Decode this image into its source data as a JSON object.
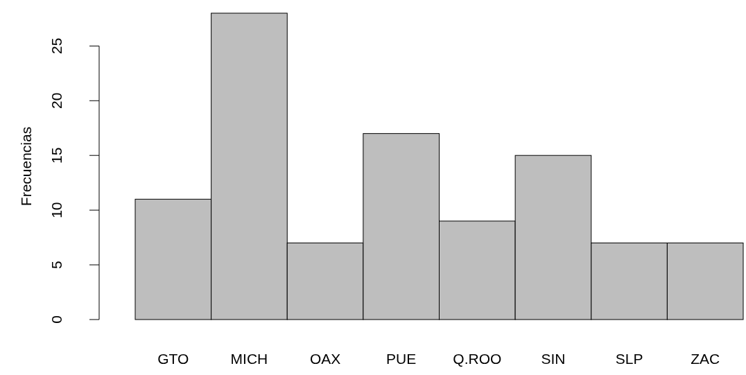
{
  "chart_data": {
    "type": "bar",
    "ylabel": "Frecuencias",
    "categories": [
      "GTO",
      "MICH",
      "OAX",
      "PUE",
      "Q.ROO",
      "SIN",
      "SLP",
      "ZAC"
    ],
    "values": [
      11,
      28,
      7,
      17,
      9,
      15,
      7,
      7
    ],
    "color": "#bebebe",
    "ylim": [
      0,
      28
    ],
    "yticks": [
      0,
      5,
      10,
      15,
      20,
      25
    ]
  }
}
